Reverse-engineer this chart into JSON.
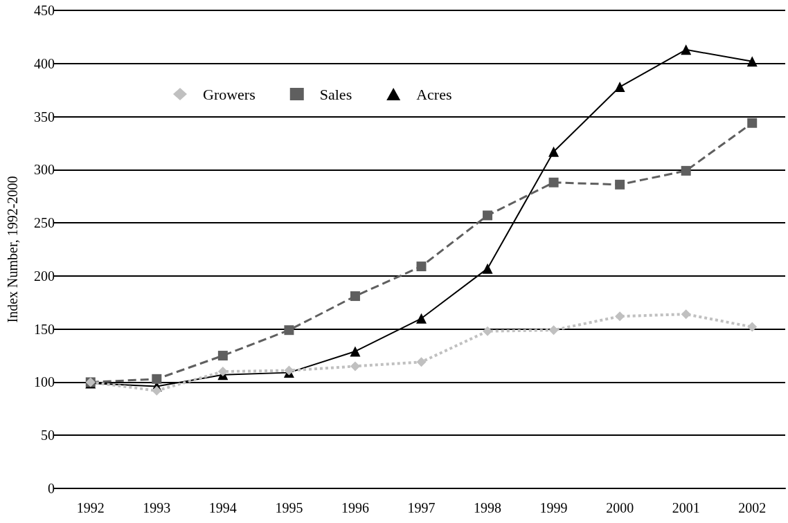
{
  "chart_data": {
    "type": "line",
    "ylabel": "Index Number, 1992-2000",
    "categories": [
      "1992",
      "1993",
      "1994",
      "1995",
      "1996",
      "1997",
      "1998",
      "1999",
      "2000",
      "2001",
      "2002"
    ],
    "series": [
      {
        "name": "Growers",
        "color": "#c0c0c0",
        "marker": "diamond",
        "line_style": "dotted",
        "values": [
          100,
          92,
          110,
          111,
          115,
          119,
          148,
          149,
          162,
          164,
          152
        ]
      },
      {
        "name": "Sales",
        "color": "#5f5f5f",
        "marker": "square",
        "line_style": "dashed",
        "values": [
          100,
          103,
          125,
          149,
          181,
          209,
          257,
          288,
          286,
          299,
          344
        ]
      },
      {
        "name": "Acres",
        "color": "#000000",
        "marker": "triangle",
        "line_style": "solid",
        "values": [
          99,
          96,
          107,
          109,
          129,
          160,
          207,
          317,
          378,
          413,
          402
        ]
      }
    ],
    "ylim": [
      0,
      450
    ],
    "yticks": [
      0,
      50,
      100,
      150,
      200,
      250,
      300,
      350,
      400,
      450
    ],
    "grid": "y",
    "legend": "top left"
  }
}
